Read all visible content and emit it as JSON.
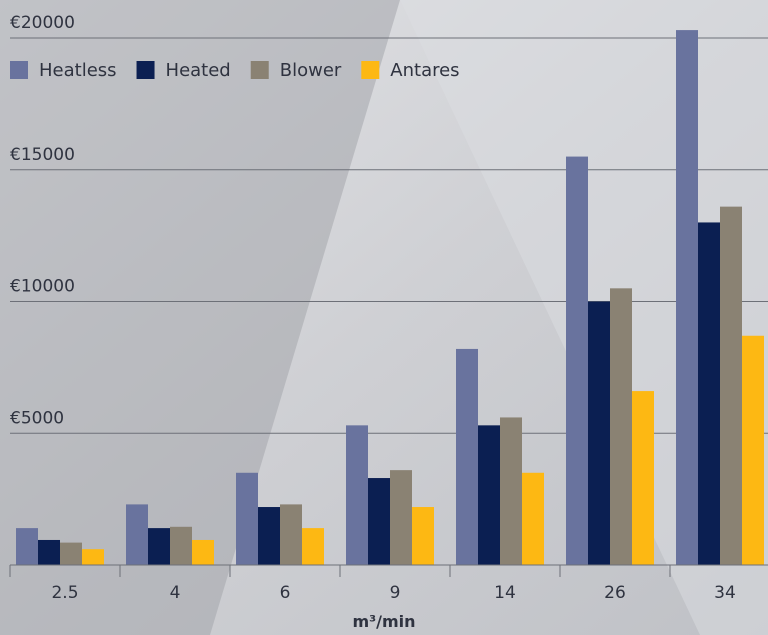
{
  "chart_data": {
    "type": "bar",
    "categories": [
      "2.5",
      "4",
      "6",
      "9",
      "14",
      "26",
      "34"
    ],
    "series": [
      {
        "name": "Heatless",
        "color": "#69739e",
        "values": [
          1400,
          2300,
          3500,
          5300,
          8200,
          15500,
          20300
        ]
      },
      {
        "name": "Heated",
        "color": "#0b1f52",
        "values": [
          950,
          1400,
          2200,
          3300,
          5300,
          10000,
          13000
        ]
      },
      {
        "name": "Blower",
        "color": "#8a8273",
        "values": [
          850,
          1450,
          2300,
          3600,
          5600,
          10500,
          13600
        ]
      },
      {
        "name": "Antares",
        "color": "#fdb813",
        "values": [
          600,
          950,
          1400,
          2200,
          3500,
          6600,
          8700
        ]
      }
    ],
    "ylim": [
      0,
      20000
    ],
    "yticks": [
      5000,
      10000,
      15000,
      20000
    ],
    "ytick_labels": [
      "€5000",
      "€10000",
      "€15000",
      "€20000"
    ],
    "xlabel": "m³/min",
    "ylabel": "",
    "title": "",
    "grid": true,
    "legend_position": "top-left"
  }
}
